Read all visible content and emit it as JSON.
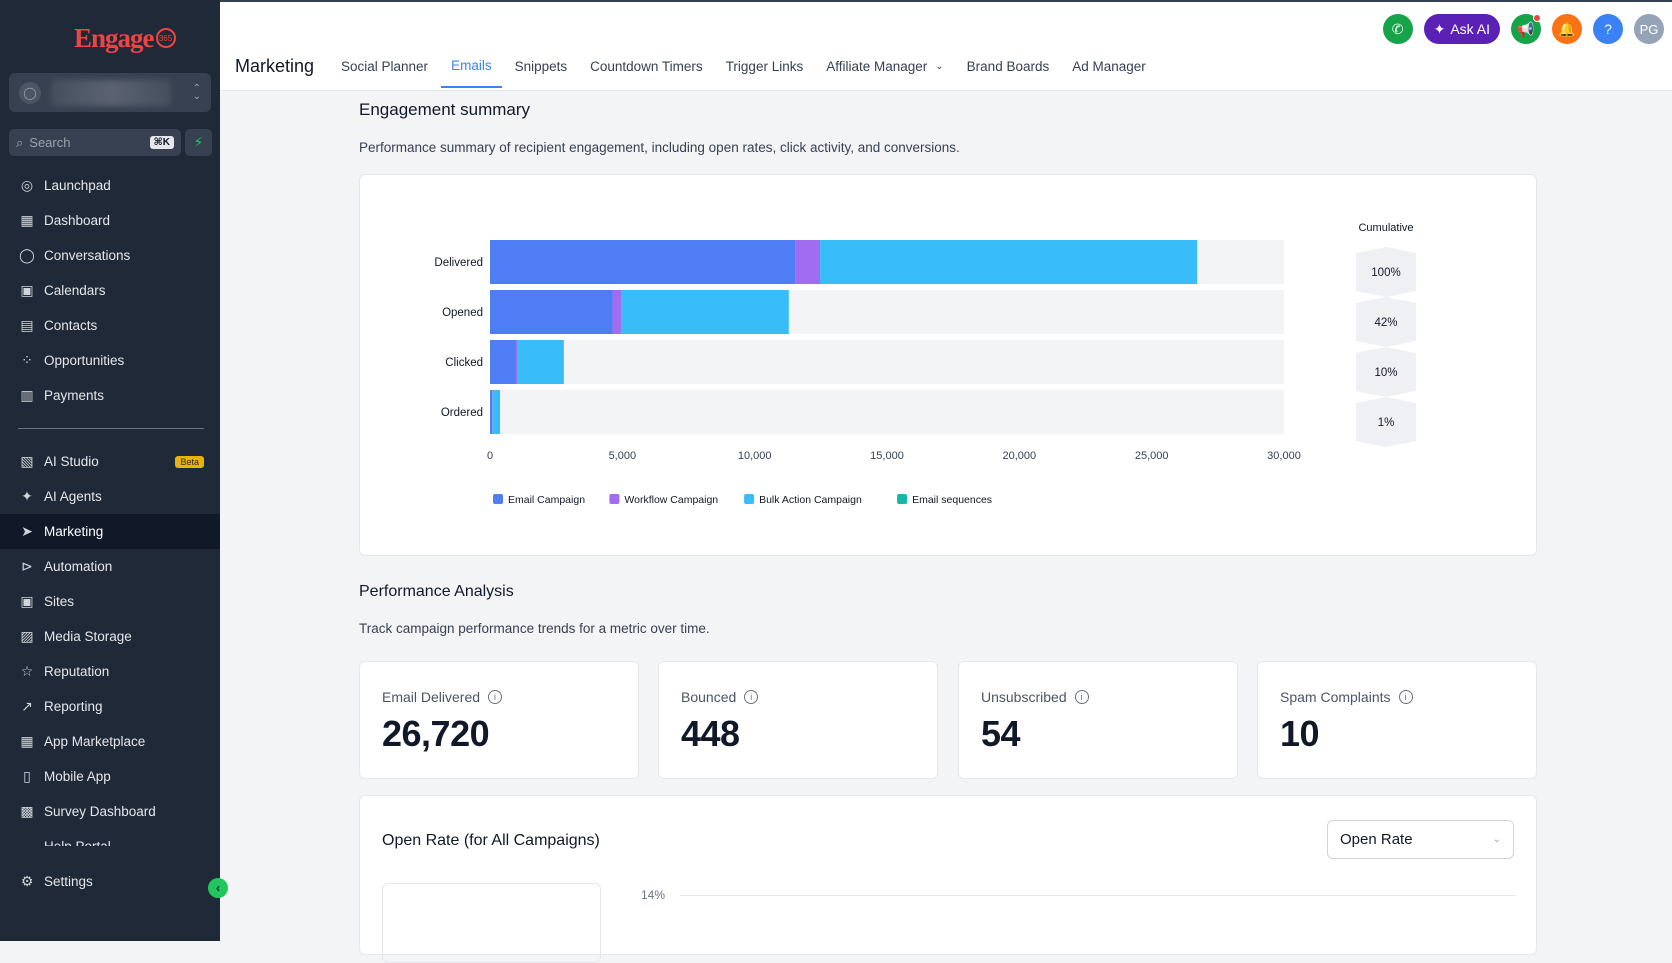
{
  "sidebar": {
    "logo": "Engage",
    "search": {
      "placeholder": "Search",
      "shortcut": "⌘K"
    },
    "items": [
      {
        "label": "Launchpad",
        "icon": "launchpad-icon",
        "glyph": "◎"
      },
      {
        "label": "Dashboard",
        "icon": "dashboard-icon",
        "glyph": "▦"
      },
      {
        "label": "Conversations",
        "icon": "chat-bubble-icon",
        "glyph": "◯"
      },
      {
        "label": "Calendars",
        "icon": "calendar-icon",
        "glyph": "▣"
      },
      {
        "label": "Contacts",
        "icon": "contacts-icon",
        "glyph": "▤"
      },
      {
        "label": "Opportunities",
        "icon": "opportunities-icon",
        "glyph": "⁘"
      },
      {
        "label": "Payments",
        "icon": "payments-icon",
        "glyph": "▥"
      }
    ],
    "items2": [
      {
        "label": "AI Studio",
        "icon": "ai-studio-icon",
        "glyph": "▧",
        "badge": "Beta"
      },
      {
        "label": "AI Agents",
        "icon": "ai-agents-icon",
        "glyph": "✦"
      },
      {
        "label": "Marketing",
        "icon": "send-icon",
        "glyph": "➤",
        "active": true
      },
      {
        "label": "Automation",
        "icon": "automation-icon",
        "glyph": "⊳"
      },
      {
        "label": "Sites",
        "icon": "sites-icon",
        "glyph": "▣"
      },
      {
        "label": "Media Storage",
        "icon": "media-icon",
        "glyph": "▨"
      },
      {
        "label": "Reputation",
        "icon": "star-icon",
        "glyph": "☆"
      },
      {
        "label": "Reporting",
        "icon": "trend-icon",
        "glyph": "↗"
      },
      {
        "label": "App Marketplace",
        "icon": "apps-icon",
        "glyph": "▦"
      },
      {
        "label": "Mobile App",
        "icon": "mobile-icon",
        "glyph": "▯"
      },
      {
        "label": "Survey Dashboard",
        "icon": "survey-icon",
        "glyph": "▩"
      },
      {
        "label": "Help Portal",
        "icon": "help-portal-icon",
        "glyph": "☁"
      }
    ],
    "settings": "Settings"
  },
  "topbar": {
    "title": "Marketing",
    "tabs": [
      "Social Planner",
      "Emails",
      "Snippets",
      "Countdown Timers",
      "Trigger Links",
      "Affiliate Manager",
      "Brand Boards",
      "Ad Manager"
    ],
    "active_tab": "Emails",
    "ask_ai": "Ask AI",
    "avatar": "PG",
    "help": "?"
  },
  "engagement": {
    "title": "Engagement summary",
    "desc": "Performance summary of recipient engagement, including open rates, click activity, and conversions."
  },
  "chart_data": {
    "type": "bar",
    "orientation": "horizontal-stacked",
    "categories": [
      "Delivered",
      "Opened",
      "Clicked",
      "Ordered"
    ],
    "series": [
      {
        "name": "Email Campaign",
        "color": "#4f7df3",
        "values": [
          11550,
          4630,
          980,
          90
        ]
      },
      {
        "name": "Workflow Campaign",
        "color": "#a26cf0",
        "values": [
          920,
          320,
          70,
          10
        ]
      },
      {
        "name": "Bulk Action Campaign",
        "color": "#38bdf8",
        "values": [
          14250,
          6340,
          1740,
          280
        ]
      },
      {
        "name": "Email sequences",
        "color": "#14b8a6",
        "values": [
          0,
          0,
          0,
          0
        ]
      }
    ],
    "xlim": [
      0,
      30000
    ],
    "xticks": [
      "0",
      "5,000",
      "10,000",
      "15,000",
      "20,000",
      "25,000",
      "30,000"
    ],
    "cumulative_label": "Cumulative",
    "cumulative": [
      "100%",
      "42%",
      "10%",
      "1%"
    ],
    "legend_position": "bottom-left"
  },
  "performance": {
    "title": "Performance Analysis",
    "desc": "Track campaign performance trends for a metric over time.",
    "stats": [
      {
        "label": "Email Delivered",
        "value": "26,720"
      },
      {
        "label": "Bounced",
        "value": "448"
      },
      {
        "label": "Unsubscribed",
        "value": "54"
      },
      {
        "label": "Spam Complaints",
        "value": "10"
      }
    ]
  },
  "open_rate": {
    "title": "Open Rate (for All Campaigns)",
    "select": "Open Rate",
    "tick": "14%"
  }
}
